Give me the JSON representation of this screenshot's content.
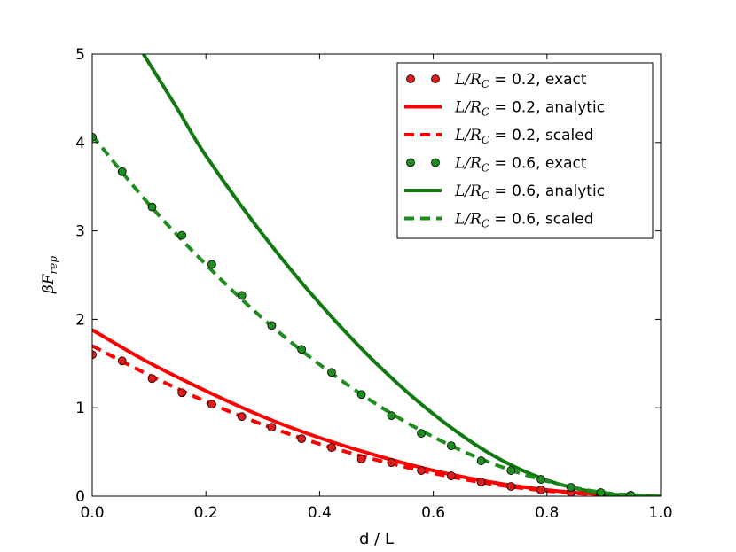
{
  "chart_data": {
    "type": "line",
    "xlabel": "d / L",
    "ylabel": "βF",
    "ylabel_sub": "rep",
    "xlim": [
      0.0,
      1.0
    ],
    "ylim": [
      0,
      5
    ],
    "xticks": [
      0.0,
      0.2,
      0.4,
      0.6,
      0.8,
      1.0
    ],
    "xtick_labels": [
      "0.0",
      "0.2",
      "0.4",
      "0.6",
      "0.8",
      "1.0"
    ],
    "yticks": [
      0,
      1,
      2,
      3,
      4,
      5
    ],
    "ytick_labels": [
      "0",
      "1",
      "2",
      "3",
      "4",
      "5"
    ],
    "legend_position": "top-right",
    "grid": false,
    "series": [
      {
        "id": "s1",
        "legend": {
          "math": "L/R",
          "sub": "C",
          "text": " = 0.2, exact"
        },
        "style": "markers",
        "color": "#dd1c1c",
        "x": [
          0.0,
          0.0526,
          0.1053,
          0.1579,
          0.2105,
          0.2632,
          0.3158,
          0.3684,
          0.4211,
          0.4737,
          0.5263,
          0.5789,
          0.6316,
          0.6842,
          0.7368,
          0.7895,
          0.8421,
          0.8947,
          0.9474
        ],
        "y": [
          1.6,
          1.53,
          1.33,
          1.17,
          1.04,
          0.9,
          0.78,
          0.65,
          0.55,
          0.42,
          0.38,
          0.29,
          0.23,
          0.16,
          0.11,
          0.07,
          0.04,
          0.02,
          0.01
        ]
      },
      {
        "id": "s2",
        "legend": {
          "math": "L/R",
          "sub": "C",
          "text": " = 0.2, analytic"
        },
        "style": "solid",
        "color": "#ff0000",
        "x": [
          0.0,
          0.1,
          0.2,
          0.3,
          0.4,
          0.5,
          0.6,
          0.7,
          0.8,
          0.9,
          1.0
        ],
        "y": [
          1.88,
          1.51,
          1.19,
          0.9,
          0.66,
          0.46,
          0.29,
          0.16,
          0.07,
          0.02,
          0.0
        ]
      },
      {
        "id": "s3",
        "legend": {
          "math": "L/R",
          "sub": "C",
          "text": " = 0.2, scaled"
        },
        "style": "dashed",
        "color": "#ff0000",
        "x": [
          0.0,
          0.1,
          0.2,
          0.3,
          0.4,
          0.5,
          0.6,
          0.7,
          0.8,
          0.9,
          1.0
        ],
        "y": [
          1.7,
          1.37,
          1.07,
          0.81,
          0.59,
          0.41,
          0.26,
          0.14,
          0.06,
          0.015,
          0.0
        ]
      },
      {
        "id": "s4",
        "legend": {
          "math": "L/R",
          "sub": "C",
          "text": " = 0.6, exact"
        },
        "style": "markers",
        "color": "#1f8c1f",
        "x": [
          0.0,
          0.0526,
          0.1053,
          0.1579,
          0.2105,
          0.2632,
          0.3158,
          0.3684,
          0.4211,
          0.4737,
          0.5263,
          0.5789,
          0.6316,
          0.6842,
          0.7368,
          0.7895,
          0.8421,
          0.8947,
          0.9474
        ],
        "y": [
          4.06,
          3.67,
          3.27,
          2.95,
          2.62,
          2.27,
          1.93,
          1.66,
          1.4,
          1.15,
          0.91,
          0.71,
          0.57,
          0.4,
          0.29,
          0.19,
          0.1,
          0.04,
          0.01
        ]
      },
      {
        "id": "s5",
        "legend": {
          "math": "L/R",
          "sub": "C",
          "text": " = 0.6, analytic"
        },
        "style": "solid",
        "color": "#107a10",
        "x": [
          0.09,
          0.15,
          0.2,
          0.3,
          0.4,
          0.5,
          0.6,
          0.7,
          0.8,
          0.9,
          1.0
        ],
        "y": [
          5.0,
          4.38,
          3.85,
          2.96,
          2.18,
          1.5,
          0.93,
          0.48,
          0.18,
          0.03,
          0.0
        ]
      },
      {
        "id": "s6",
        "legend": {
          "math": "L/R",
          "sub": "C",
          "text": " = 0.6, scaled"
        },
        "style": "dashed",
        "color": "#1f8c1f",
        "x": [
          0.0,
          0.1,
          0.2,
          0.3,
          0.4,
          0.5,
          0.6,
          0.7,
          0.8,
          0.9,
          1.0
        ],
        "y": [
          4.08,
          3.3,
          2.62,
          2.01,
          1.49,
          1.04,
          0.67,
          0.38,
          0.17,
          0.04,
          0.0
        ]
      }
    ]
  }
}
